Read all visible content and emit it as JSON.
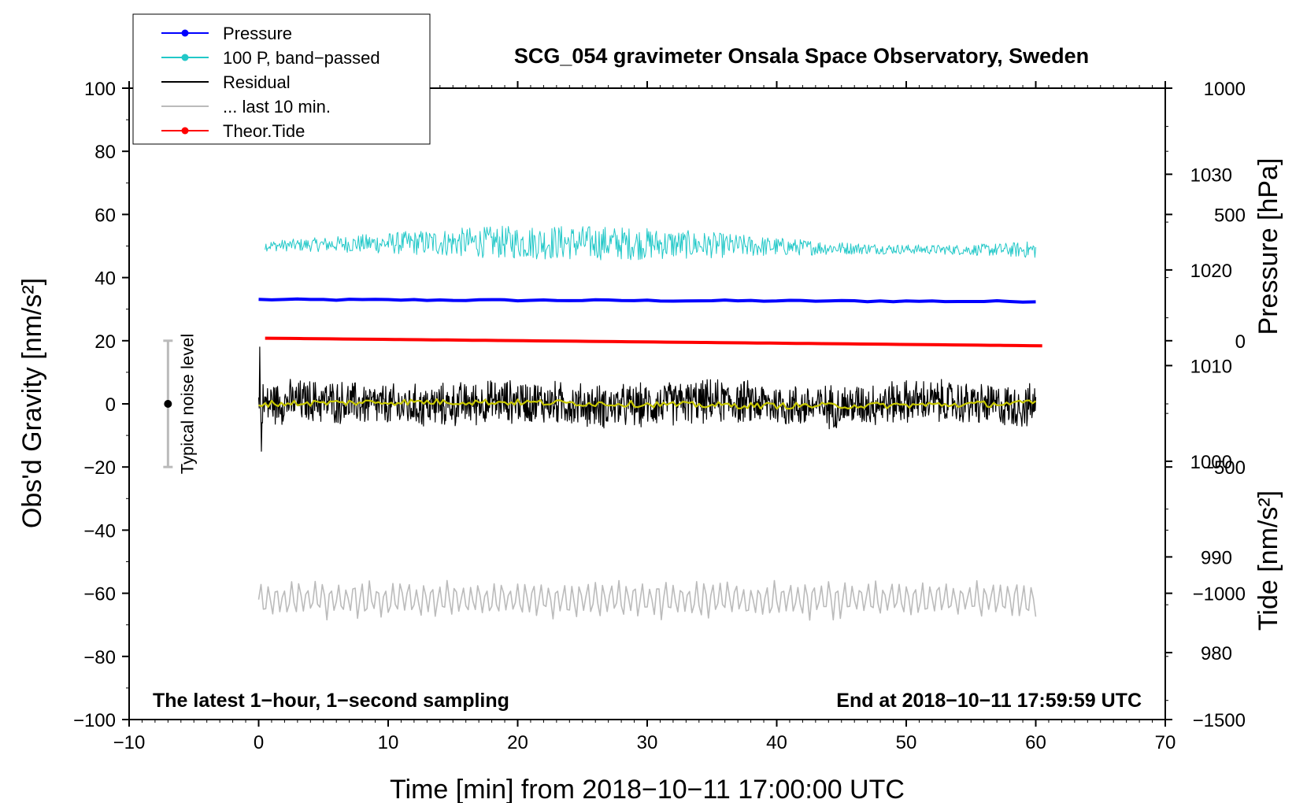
{
  "chart_data": {
    "type": "line",
    "title": "SCG_054 gravimeter Onsala Space Observatory, Sweden",
    "xlabel": "Time [min] from 2018−10−11 17:00:00 UTC",
    "ylabel_left": "Obs'd Gravity [nm/s²]",
    "ylabel_right_top": "Pressure [hPa]",
    "ylabel_right_bottom": "Tide [nm/s²]",
    "xlim": [
      -10,
      70
    ],
    "ylim": [
      -100,
      100
    ],
    "pressure_axis_range": [
      973,
      1039
    ],
    "tide_axis_range": [
      -1500,
      1000
    ],
    "x_ticks": [
      "−10",
      "0",
      "10",
      "20",
      "30",
      "40",
      "50",
      "60",
      "70"
    ],
    "x_tick_values": [
      -10,
      0,
      10,
      20,
      30,
      40,
      50,
      60,
      70
    ],
    "y_ticks": [
      "−100",
      "−80",
      "−60",
      "−40",
      "−20",
      "0",
      "20",
      "40",
      "60",
      "80",
      "100"
    ],
    "y_tick_values": [
      -100,
      -80,
      -60,
      -40,
      -20,
      0,
      20,
      40,
      60,
      80,
      100
    ],
    "pressure_ticks": [
      "980",
      "990",
      "1000",
      "1010",
      "1020",
      "1030"
    ],
    "pressure_tick_values": [
      980,
      990,
      1000,
      1010,
      1020,
      1030
    ],
    "tide_ticks": [
      "−1500",
      "−1000",
      "−500",
      "0",
      "500",
      "1000"
    ],
    "tide_tick_values": [
      -1500,
      -1000,
      -500,
      0,
      500,
      1000
    ],
    "legend_position": "top-left",
    "legend": [
      {
        "label": "Pressure",
        "color": "#0000ff",
        "marker": true
      },
      {
        "label": "100 P, band−passed",
        "color": "#22c8c8",
        "marker": true
      },
      {
        "label": "Residual",
        "color": "#000000",
        "marker": false
      },
      {
        "label": "... last 10 min.",
        "color": "#bbbbbb",
        "marker": false
      },
      {
        "label": "Theor.Tide",
        "color": "#ff0000",
        "marker": true
      }
    ],
    "series": [
      {
        "name": "Pressure",
        "color": "#0000ff",
        "axis": "pressure",
        "x_range": [
          0,
          60
        ],
        "value_start": 1016.9,
        "value_end": 1016.7
      },
      {
        "name": "100 P, band−passed",
        "color": "#22c8c8",
        "axis": "left",
        "x_range": [
          0.5,
          60
        ],
        "center": 50,
        "amplitude_min": 1.5,
        "amplitude_max": 5.5
      },
      {
        "name": "Residual",
        "color": "#000000",
        "axis": "left",
        "x_range": [
          0,
          60
        ],
        "center": 0,
        "amplitude": 6,
        "max": 18,
        "min": -15
      },
      {
        "name": "Residual smoothed",
        "color": "#c8c800",
        "axis": "left",
        "x_range": [
          0,
          60
        ],
        "center": 0,
        "amplitude": 1
      },
      {
        "name": "... last 10 min.",
        "color": "#bbbbbb",
        "axis": "left",
        "x_range": [
          0,
          60
        ],
        "center": -62,
        "amplitude": 6
      },
      {
        "name": "Theor.Tide",
        "color": "#ff0000",
        "axis": "tide",
        "x_range": [
          0.5,
          60.5
        ],
        "value_start": 10,
        "value_end": -20
      }
    ],
    "noise_bar": {
      "label": "Typical noise level",
      "x": -7,
      "center": 0,
      "low": -20,
      "high": 20
    },
    "annotations": {
      "bottom_left": "The latest 1−hour, 1−second sampling",
      "bottom_right": "End at 2018−10−11 17:59:59 UTC"
    }
  }
}
